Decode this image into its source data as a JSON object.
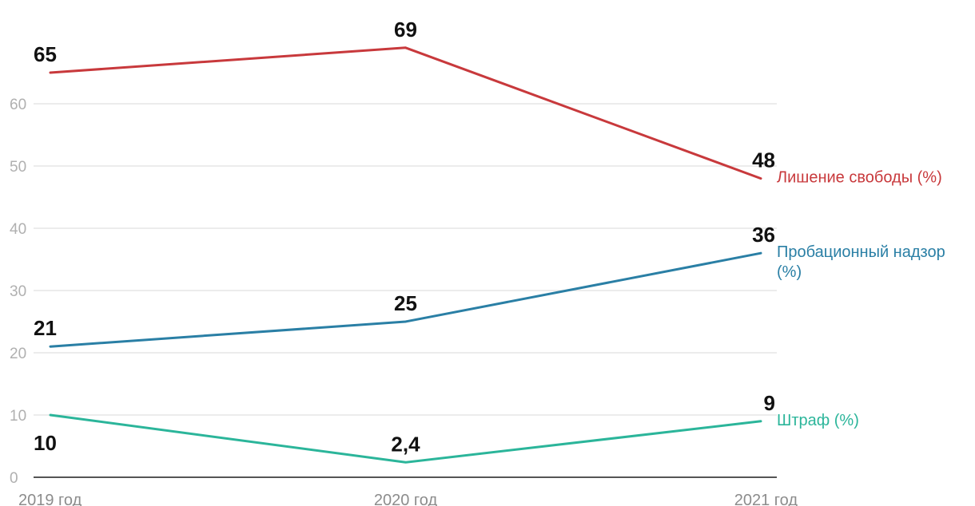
{
  "chart_data": {
    "type": "line",
    "categories": [
      "2019 год",
      "2020 год",
      "2021 год"
    ],
    "ylim": [
      0,
      70
    ],
    "yticks": [
      0,
      10,
      20,
      30,
      40,
      50,
      60
    ],
    "grid": true,
    "legend": "inline-right",
    "series": [
      {
        "name": "Лишение свободы (%)",
        "name_lines": [
          "Лишение свободы (%)"
        ],
        "color": "#c8393c",
        "values": [
          65,
          69,
          48
        ],
        "value_labels": [
          "65",
          "69",
          "48"
        ]
      },
      {
        "name": "Пробационный надзор (%)",
        "name_lines": [
          "Пробационный надзор",
          "(%)"
        ],
        "color": "#2a7fa5",
        "values": [
          21,
          25,
          36
        ],
        "value_labels": [
          "21",
          "25",
          "36"
        ]
      },
      {
        "name": "Штраф (%)",
        "name_lines": [
          "Штраф (%)"
        ],
        "color": "#2bb59a",
        "values": [
          10,
          2.4,
          9
        ],
        "value_labels": [
          "10",
          "2,4",
          "9"
        ]
      }
    ]
  }
}
